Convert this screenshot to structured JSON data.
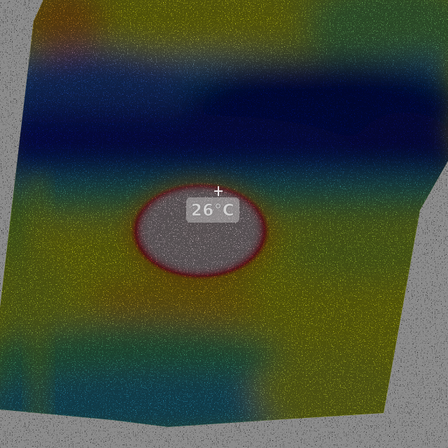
{
  "image": {
    "type": "thermal-camera-capture",
    "colormap": "rainbow",
    "temperature_readout": "26°C",
    "palette": {
      "hot_center": "#fbe8ee",
      "hot_ring": "#e8182a",
      "warm": "#ffd21a",
      "mid": "#e8f21a",
      "cool": "#22b0e0",
      "cold": "#0a1a9a",
      "coldest": "#04106a",
      "background": "#000000"
    }
  }
}
